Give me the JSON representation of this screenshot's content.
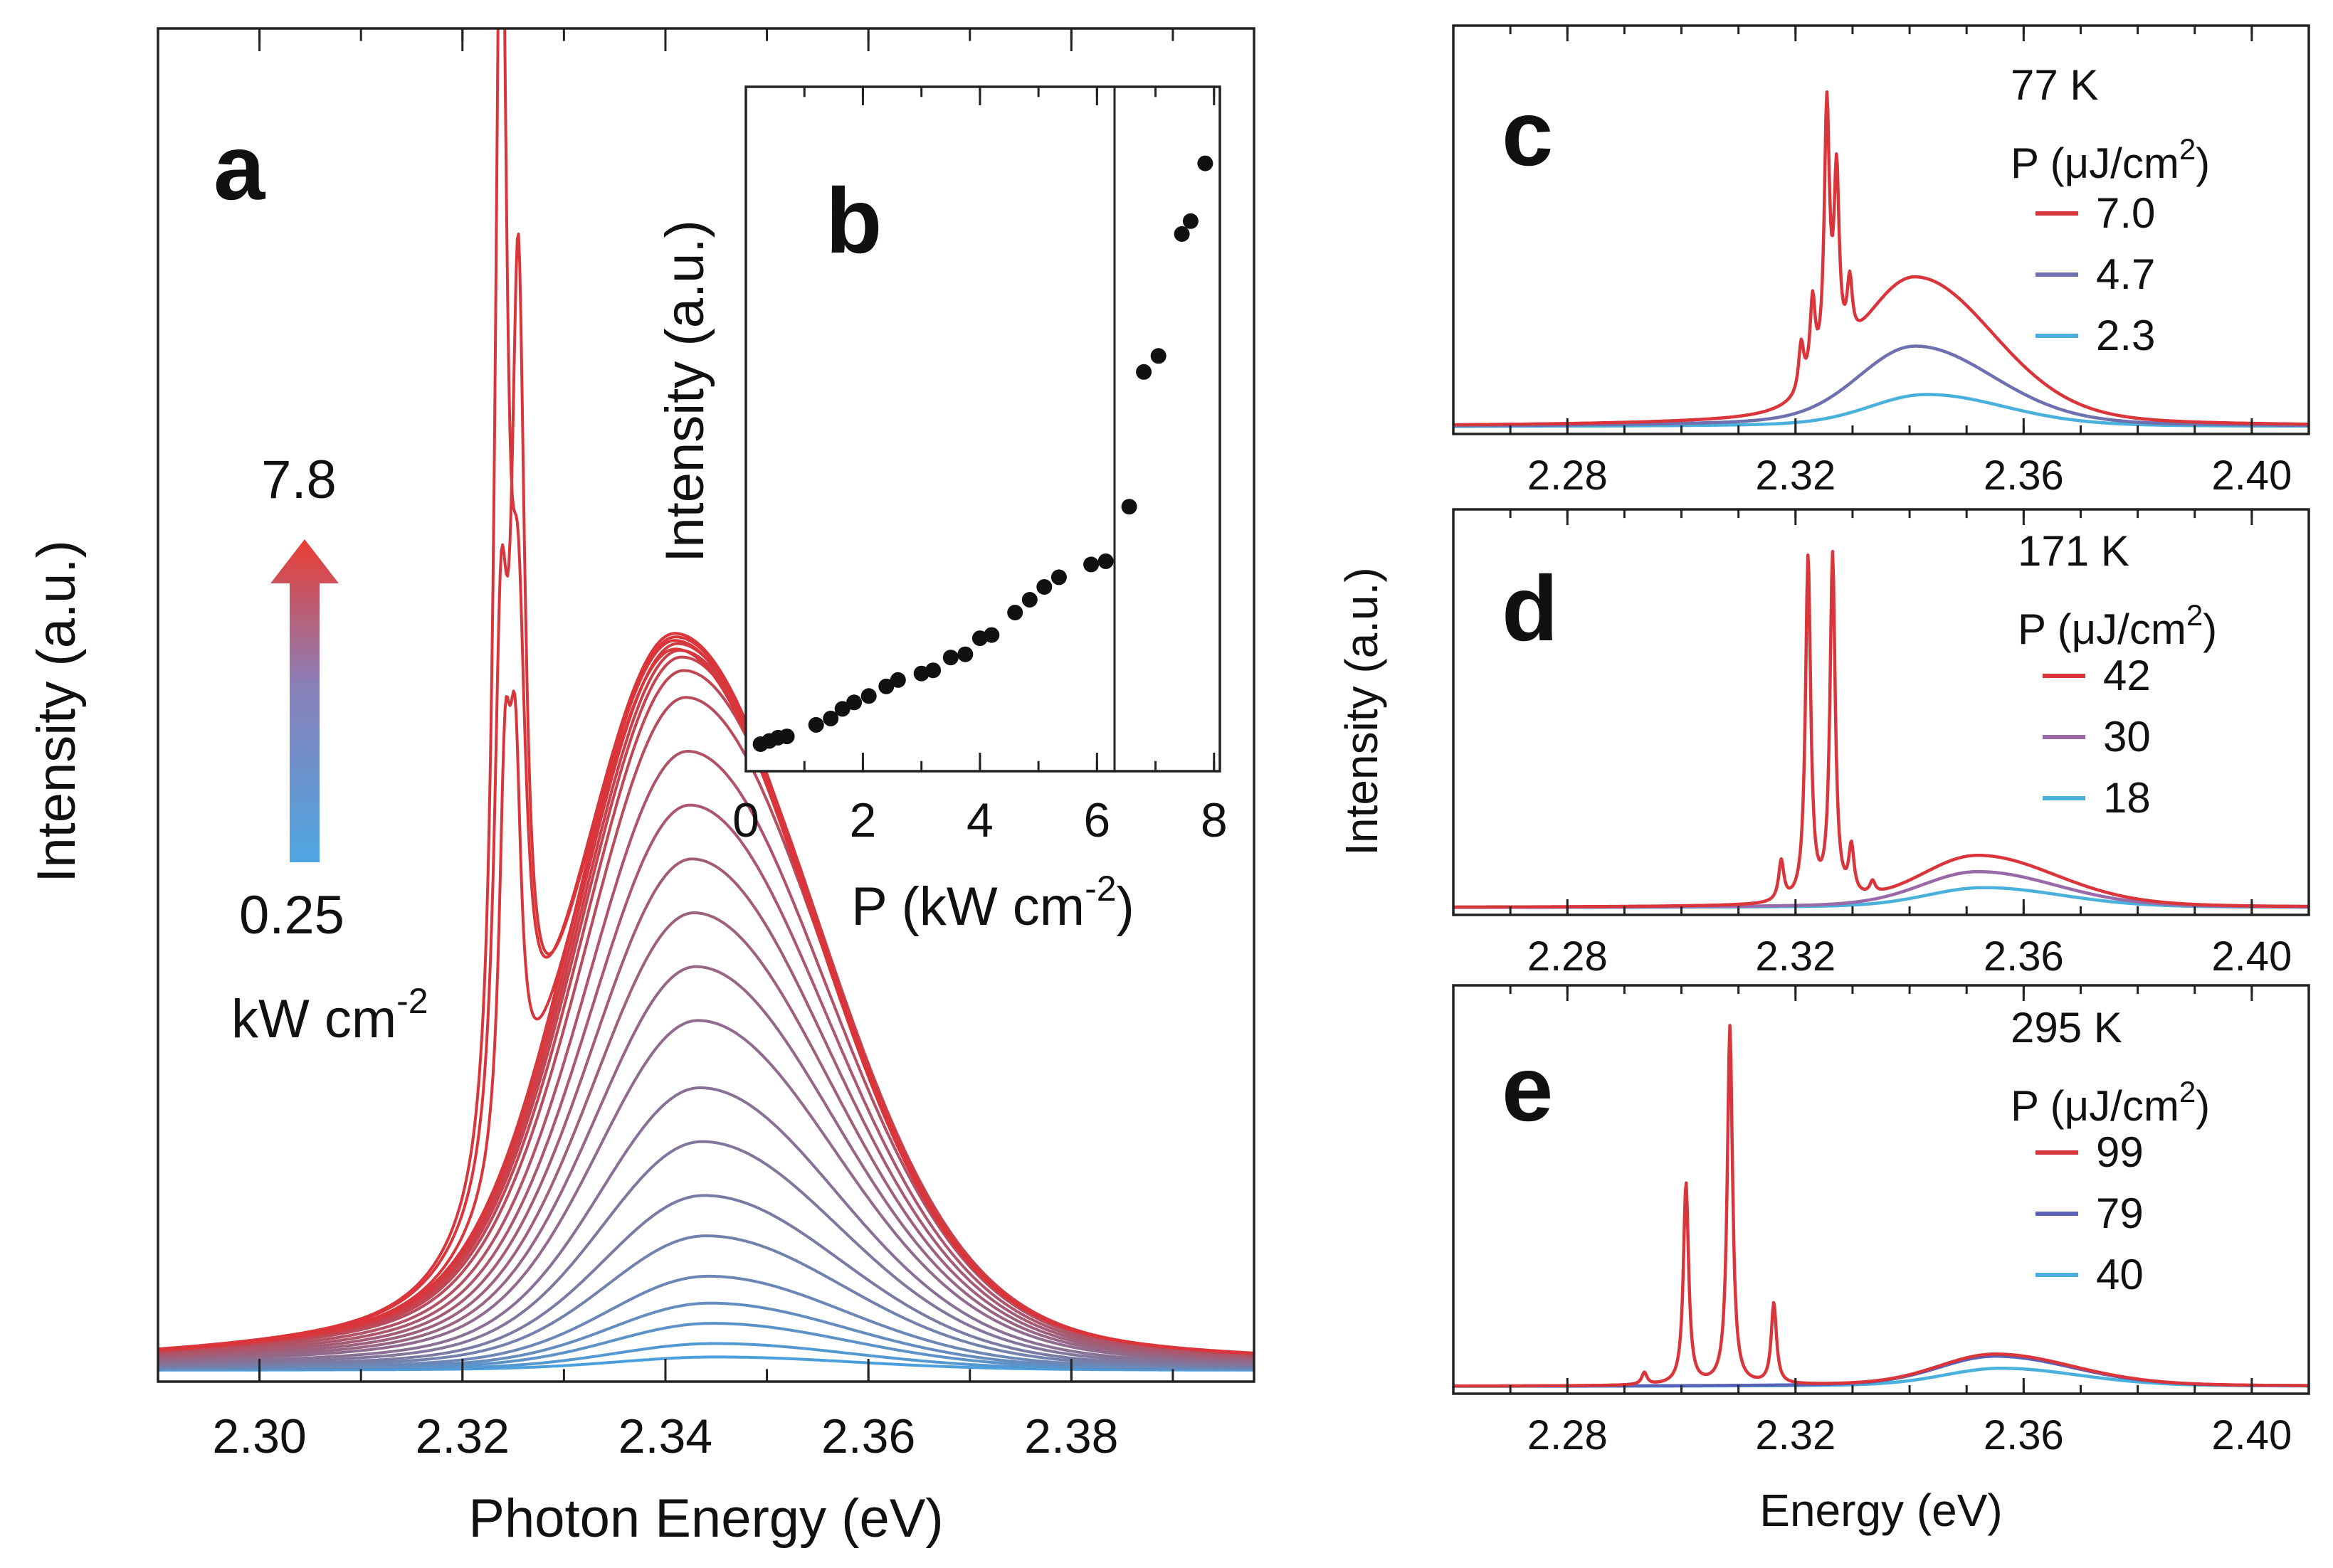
{
  "figure": {
    "panels": {
      "a": {
        "letter": "a",
        "arrow_top": "7.8",
        "arrow_bottom": "0.25",
        "arrow_unit": "kW cm",
        "arrow_unit_sup": "-2"
      },
      "b": {
        "letter": "b"
      },
      "c": {
        "letter": "c",
        "temperature": "77 K",
        "legend_title": "P (μJ/cm",
        "legend_title_sup": "2",
        "legend_close": ")",
        "labels": [
          "7.0",
          "4.7",
          "2.3"
        ]
      },
      "d": {
        "letter": "d",
        "temperature": "171 K",
        "legend_title": "P (μJ/cm",
        "legend_title_sup": "2",
        "legend_close": ")",
        "labels": [
          "42",
          "30",
          "18"
        ]
      },
      "e": {
        "letter": "e",
        "temperature": "295 K",
        "legend_title": "P (μJ/cm",
        "legend_title_sup": "2",
        "legend_close": ")",
        "labels": [
          "99",
          "79",
          "40"
        ]
      }
    },
    "right_ylabel": "Intensity (a.u.)"
  },
  "chart_data": [
    {
      "panel": "a",
      "type": "line",
      "xlabel": "Photon Energy (eV)",
      "ylabel": "Intensity (a.u.)",
      "xlim": [
        2.29,
        2.398
      ],
      "ylim": [
        0,
        1.0
      ],
      "xticks": [
        2.3,
        2.32,
        2.34,
        2.36,
        2.38
      ],
      "xtick_labels": [
        "2.30",
        "2.32",
        "2.34",
        "2.36",
        "2.38"
      ],
      "power_range_kW_cm2": [
        0.25,
        7.8
      ],
      "colors": {
        "low": "#4a9fdc",
        "high": "#d9353a"
      },
      "broad_peak_center_eV": 2.341,
      "broad_peak_heights": [
        0.01,
        0.02,
        0.035,
        0.05,
        0.07,
        0.1,
        0.13,
        0.17,
        0.21,
        0.26,
        0.3,
        0.34,
        0.38,
        0.42,
        0.46,
        0.5,
        0.52,
        0.53,
        0.535,
        0.54,
        0.545
      ],
      "lasing_lines": [
        {
          "x": 2.3238,
          "height": 0.95
        },
        {
          "x": 2.3255,
          "height": 0.6
        },
        {
          "x": 2.3242,
          "height": 0.26
        },
        {
          "x": 2.3252,
          "height": 0.24
        }
      ]
    },
    {
      "panel": "b",
      "type": "scatter",
      "xlabel": "P (kW cm",
      "xlabel_sup": "-2",
      "xlabel_close": ")",
      "ylabel": "Intensity (a.u.)",
      "xlim": [
        0,
        8.1
      ],
      "ylim": [
        0,
        1.0
      ],
      "xticks": [
        0,
        2,
        4,
        6,
        8
      ],
      "xtick_labels": [
        "0",
        "2",
        "4",
        "6",
        "8"
      ],
      "threshold_x": 6.3,
      "points": [
        [
          0.25,
          0.02
        ],
        [
          0.4,
          0.025
        ],
        [
          0.55,
          0.03
        ],
        [
          0.7,
          0.032
        ],
        [
          1.2,
          0.05
        ],
        [
          1.45,
          0.06
        ],
        [
          1.65,
          0.075
        ],
        [
          1.85,
          0.085
        ],
        [
          2.1,
          0.095
        ],
        [
          2.4,
          0.11
        ],
        [
          2.6,
          0.12
        ],
        [
          3.0,
          0.13
        ],
        [
          3.2,
          0.135
        ],
        [
          3.5,
          0.155
        ],
        [
          3.75,
          0.16
        ],
        [
          4.0,
          0.185
        ],
        [
          4.2,
          0.19
        ],
        [
          4.6,
          0.225
        ],
        [
          4.85,
          0.245
        ],
        [
          5.1,
          0.265
        ],
        [
          5.35,
          0.28
        ],
        [
          5.9,
          0.3
        ],
        [
          6.15,
          0.305
        ],
        [
          6.55,
          0.39
        ],
        [
          6.8,
          0.6
        ],
        [
          7.05,
          0.625
        ],
        [
          7.45,
          0.815
        ],
        [
          7.6,
          0.835
        ],
        [
          7.85,
          0.925
        ]
      ]
    },
    {
      "panel": "c",
      "type": "line",
      "xlabel": "",
      "ylabel": "Intensity (a.u.)",
      "xlim": [
        2.26,
        2.41
      ],
      "ylim": [
        0,
        1.0
      ],
      "xticks": [
        2.28,
        2.32,
        2.36,
        2.4
      ],
      "xtick_labels": [
        "2.28",
        "2.32",
        "2.36",
        "2.40"
      ],
      "series": [
        {
          "name": "7.0",
          "color": "#d9353a",
          "broad_center": 2.341,
          "broad_height": 0.37,
          "modes": [
            [
              2.3255,
              0.65
            ],
            [
              2.3272,
              0.45
            ],
            [
              2.323,
              0.2
            ],
            [
              2.321,
              0.12
            ],
            [
              2.3295,
              0.15
            ]
          ]
        },
        {
          "name": "4.7",
          "color": "#6e70b0",
          "broad_center": 2.341,
          "broad_height": 0.2,
          "modes": []
        },
        {
          "name": "2.3",
          "color": "#4ab0dc",
          "broad_center": 2.343,
          "broad_height": 0.08,
          "modes": []
        }
      ]
    },
    {
      "panel": "d",
      "type": "line",
      "xlabel": "",
      "ylabel": "Intensity (a.u.)",
      "xlim": [
        2.26,
        2.41
      ],
      "ylim": [
        0,
        1.0
      ],
      "xticks": [
        2.28,
        2.32,
        2.36,
        2.4
      ],
      "xtick_labels": [
        "2.28",
        "2.32",
        "2.36",
        "2.40"
      ],
      "series": [
        {
          "name": "42",
          "color": "#d9353a",
          "broad_center": 2.352,
          "broad_height": 0.13,
          "modes": [
            [
              2.3222,
              0.86
            ],
            [
              2.3265,
              0.86
            ],
            [
              2.3175,
              0.1
            ],
            [
              2.3298,
              0.12
            ],
            [
              2.3335,
              0.03
            ]
          ]
        },
        {
          "name": "30",
          "color": "#9a6aa8",
          "broad_center": 2.352,
          "broad_height": 0.09,
          "modes": []
        },
        {
          "name": "18",
          "color": "#4ab0dc",
          "broad_center": 2.353,
          "broad_height": 0.05,
          "modes": []
        }
      ]
    },
    {
      "panel": "e",
      "type": "line",
      "xlabel": "Energy (eV)",
      "ylabel": "Intensity (a.u.)",
      "xlim": [
        2.26,
        2.41
      ],
      "ylim": [
        0,
        1.0
      ],
      "xticks": [
        2.28,
        2.32,
        2.36,
        2.4
      ],
      "xtick_labels": [
        "2.28",
        "2.32",
        "2.36",
        "2.40"
      ],
      "series": [
        {
          "name": "99",
          "color": "#d9353a",
          "broad_center": 2.355,
          "broad_height": 0.08,
          "modes": [
            [
              2.3085,
              0.89
            ],
            [
              2.3008,
              0.5
            ],
            [
              2.3162,
              0.2
            ],
            [
              2.2935,
              0.03
            ]
          ]
        },
        {
          "name": "79",
          "color": "#5a62b8",
          "broad_center": 2.355,
          "broad_height": 0.075,
          "modes": []
        },
        {
          "name": "40",
          "color": "#4ab0dc",
          "broad_center": 2.356,
          "broad_height": 0.045,
          "modes": []
        }
      ]
    }
  ]
}
